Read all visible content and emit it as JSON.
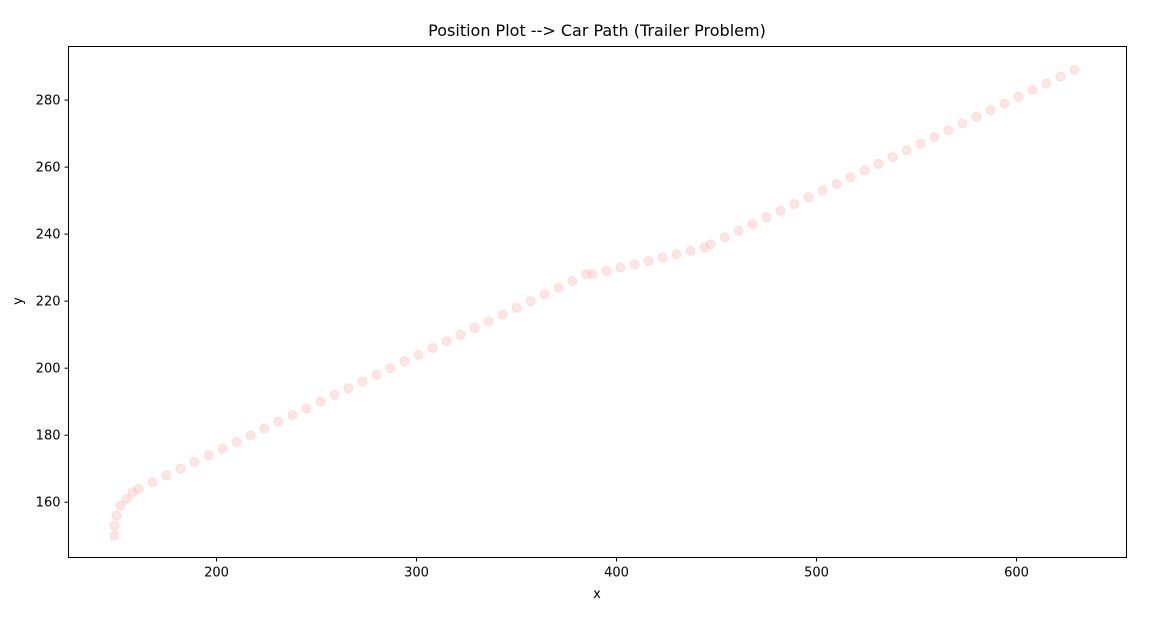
{
  "chart_data": {
    "type": "scatter",
    "title": "Position Plot --> Car Path (Trailer Problem)",
    "xlabel": "x",
    "ylabel": "y",
    "xlim": [
      126,
      655
    ],
    "ylim": [
      143.5,
      296
    ],
    "xticks": [
      200,
      300,
      400,
      500,
      600
    ],
    "yticks": [
      160,
      180,
      200,
      220,
      240,
      260,
      280
    ],
    "grid": false,
    "marker_color": "#ffb3b3",
    "marker_alpha": 0.35,
    "points": [
      {
        "x": 149,
        "y": 150
      },
      {
        "x": 149,
        "y": 153
      },
      {
        "x": 150,
        "y": 156
      },
      {
        "x": 152,
        "y": 159
      },
      {
        "x": 155,
        "y": 161
      },
      {
        "x": 158,
        "y": 163
      },
      {
        "x": 161,
        "y": 164
      },
      {
        "x": 168,
        "y": 166
      },
      {
        "x": 175,
        "y": 168
      },
      {
        "x": 182,
        "y": 170
      },
      {
        "x": 189,
        "y": 172
      },
      {
        "x": 196,
        "y": 174
      },
      {
        "x": 203,
        "y": 176
      },
      {
        "x": 210,
        "y": 178
      },
      {
        "x": 217,
        "y": 180
      },
      {
        "x": 224,
        "y": 182
      },
      {
        "x": 231,
        "y": 184
      },
      {
        "x": 238,
        "y": 186
      },
      {
        "x": 245,
        "y": 188
      },
      {
        "x": 252,
        "y": 190
      },
      {
        "x": 259,
        "y": 192
      },
      {
        "x": 266,
        "y": 194
      },
      {
        "x": 273,
        "y": 196
      },
      {
        "x": 280,
        "y": 198
      },
      {
        "x": 287,
        "y": 200
      },
      {
        "x": 294,
        "y": 202
      },
      {
        "x": 301,
        "y": 204
      },
      {
        "x": 308,
        "y": 206
      },
      {
        "x": 315,
        "y": 208
      },
      {
        "x": 322,
        "y": 210
      },
      {
        "x": 329,
        "y": 212
      },
      {
        "x": 336,
        "y": 214
      },
      {
        "x": 343,
        "y": 216
      },
      {
        "x": 350,
        "y": 218
      },
      {
        "x": 357,
        "y": 220
      },
      {
        "x": 364,
        "y": 222
      },
      {
        "x": 371,
        "y": 224
      },
      {
        "x": 378,
        "y": 226
      },
      {
        "x": 385,
        "y": 228
      },
      {
        "x": 388,
        "y": 228
      },
      {
        "x": 395,
        "y": 229
      },
      {
        "x": 402,
        "y": 230
      },
      {
        "x": 409,
        "y": 231
      },
      {
        "x": 416,
        "y": 232
      },
      {
        "x": 423,
        "y": 233
      },
      {
        "x": 430,
        "y": 234
      },
      {
        "x": 437,
        "y": 235
      },
      {
        "x": 444,
        "y": 236
      },
      {
        "x": 447,
        "y": 237
      },
      {
        "x": 454,
        "y": 239
      },
      {
        "x": 461,
        "y": 241
      },
      {
        "x": 468,
        "y": 243
      },
      {
        "x": 475,
        "y": 245
      },
      {
        "x": 482,
        "y": 247
      },
      {
        "x": 489,
        "y": 249
      },
      {
        "x": 496,
        "y": 251
      },
      {
        "x": 503,
        "y": 253
      },
      {
        "x": 510,
        "y": 255
      },
      {
        "x": 517,
        "y": 257
      },
      {
        "x": 524,
        "y": 259
      },
      {
        "x": 531,
        "y": 261
      },
      {
        "x": 538,
        "y": 263
      },
      {
        "x": 545,
        "y": 265
      },
      {
        "x": 552,
        "y": 267
      },
      {
        "x": 559,
        "y": 269
      },
      {
        "x": 566,
        "y": 271
      },
      {
        "x": 573,
        "y": 273
      },
      {
        "x": 580,
        "y": 275
      },
      {
        "x": 587,
        "y": 277
      },
      {
        "x": 594,
        "y": 279
      },
      {
        "x": 601,
        "y": 281
      },
      {
        "x": 608,
        "y": 283
      },
      {
        "x": 615,
        "y": 285
      },
      {
        "x": 622,
        "y": 287
      },
      {
        "x": 629,
        "y": 289
      }
    ]
  }
}
